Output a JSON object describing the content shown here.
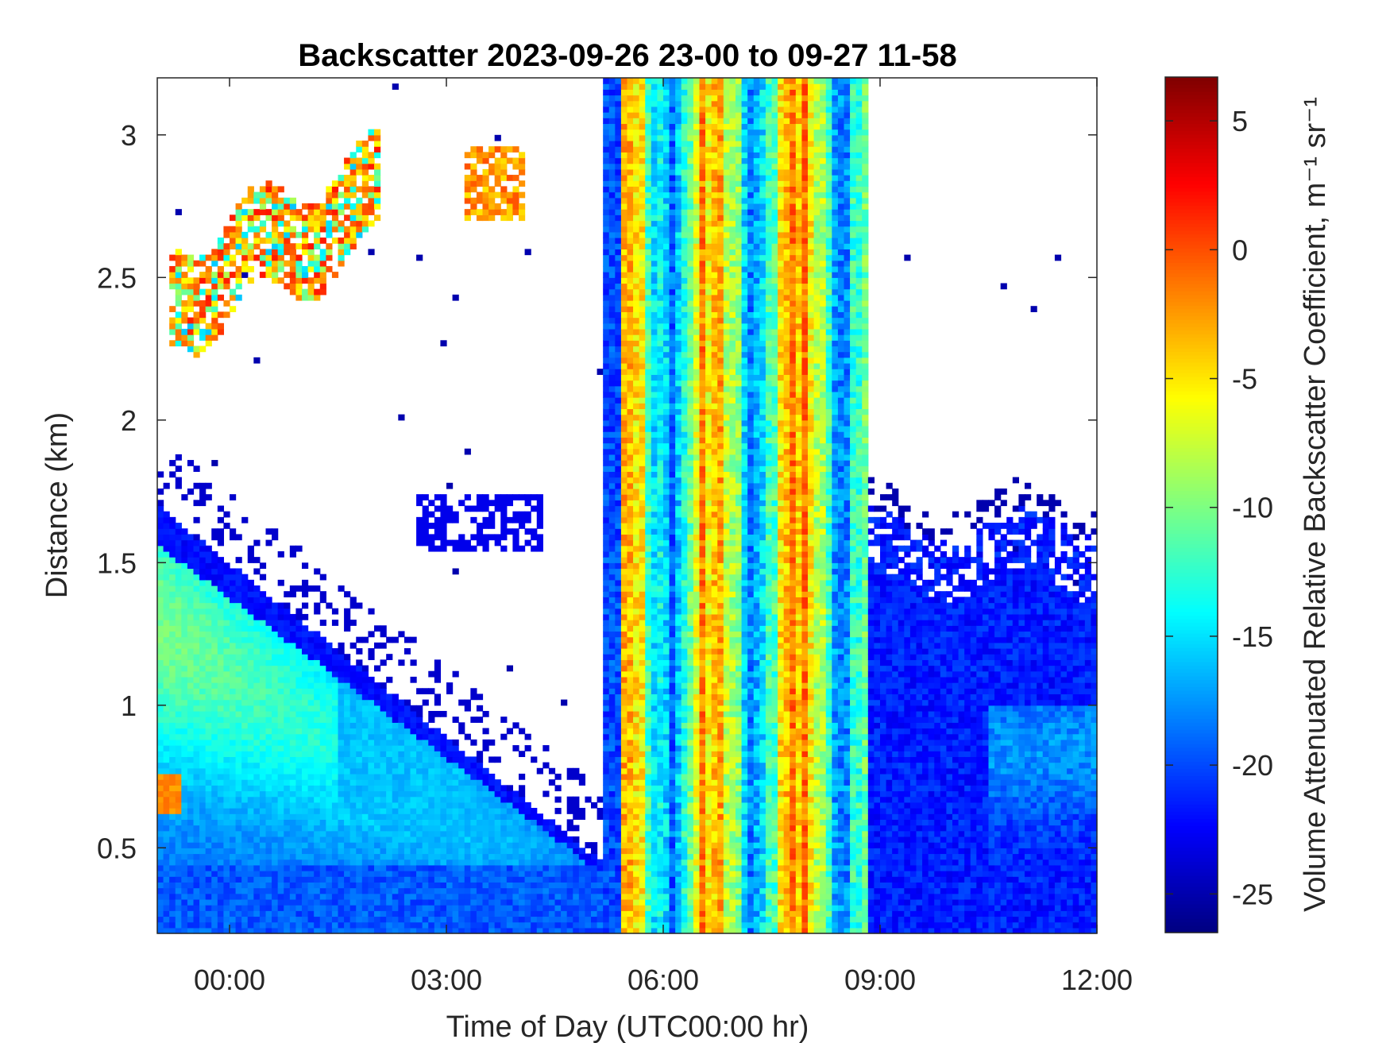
{
  "chart_data": {
    "type": "heatmap",
    "title": "Backscatter 2023-09-26 23-00 to 09-27 11-58",
    "xlabel": "Time of Day (UTC00:00 hr)",
    "ylabel": "Distance (km)",
    "xlim_hours": [
      -1.0,
      12.0
    ],
    "ylim_km": [
      0.2,
      3.2
    ],
    "x_ticks": [
      {
        "hour": 0,
        "label": "00:00"
      },
      {
        "hour": 3,
        "label": "03:00"
      },
      {
        "hour": 6,
        "label": "06:00"
      },
      {
        "hour": 9,
        "label": "09:00"
      },
      {
        "hour": 12,
        "label": "12:00"
      }
    ],
    "y_ticks": [
      {
        "km": 0.5,
        "label": "0.5"
      },
      {
        "km": 1,
        "label": "1"
      },
      {
        "km": 1.5,
        "label": "1.5"
      },
      {
        "km": 2,
        "label": "2"
      },
      {
        "km": 2.5,
        "label": "2.5"
      },
      {
        "km": 3,
        "label": "3"
      }
    ],
    "colorbar": {
      "label": "Volume Attenuated Relative Backscatter Coefficient, m⁻¹ sr⁻¹",
      "clim": [
        -26.5,
        6.7
      ],
      "ticks": [
        {
          "value": 5,
          "label": "5"
        },
        {
          "value": 0,
          "label": "0"
        },
        {
          "value": -5,
          "label": "-5"
        },
        {
          "value": -10,
          "label": "-10"
        },
        {
          "value": -15,
          "label": "-15"
        },
        {
          "value": -20,
          "label": "-20"
        },
        {
          "value": -25,
          "label": "-25"
        }
      ],
      "colormap": "jet"
    },
    "features": [
      {
        "name": "boundary-layer aerosol",
        "time_start": -1.0,
        "time_end": 5.15,
        "top_km_start": 1.7,
        "top_km_end": 0.45,
        "value_range": [
          -20,
          -11
        ]
      },
      {
        "name": "near-surface aerosol patch",
        "time_start": -1.0,
        "time_end": -0.7,
        "height_km": [
          0.62,
          0.76
        ],
        "value": -3
      },
      {
        "name": "upper cloud",
        "time_start": -0.85,
        "time_end": 2.1,
        "height_km": [
          2.2,
          2.85
        ],
        "value_range": [
          -13,
          2
        ]
      },
      {
        "name": "small cloud",
        "time_start": 3.25,
        "time_end": 4.05,
        "height_km": [
          2.7,
          2.95
        ],
        "value_range": [
          -12,
          0
        ]
      },
      {
        "name": "aerosol layer",
        "time_start": 2.55,
        "time_end": 4.3,
        "height_km": [
          1.55,
          1.73
        ],
        "value": -23
      },
      {
        "name": "precipitation / fog column",
        "time_start": 5.2,
        "time_end": 8.8,
        "height_km": [
          0.2,
          3.2
        ],
        "value_range": [
          -24,
          1
        ]
      },
      {
        "name": "morning boundary layer",
        "time_start": 8.8,
        "time_end": 12.0,
        "top_km": 1.6,
        "value_range": [
          -24,
          -16
        ]
      }
    ]
  }
}
